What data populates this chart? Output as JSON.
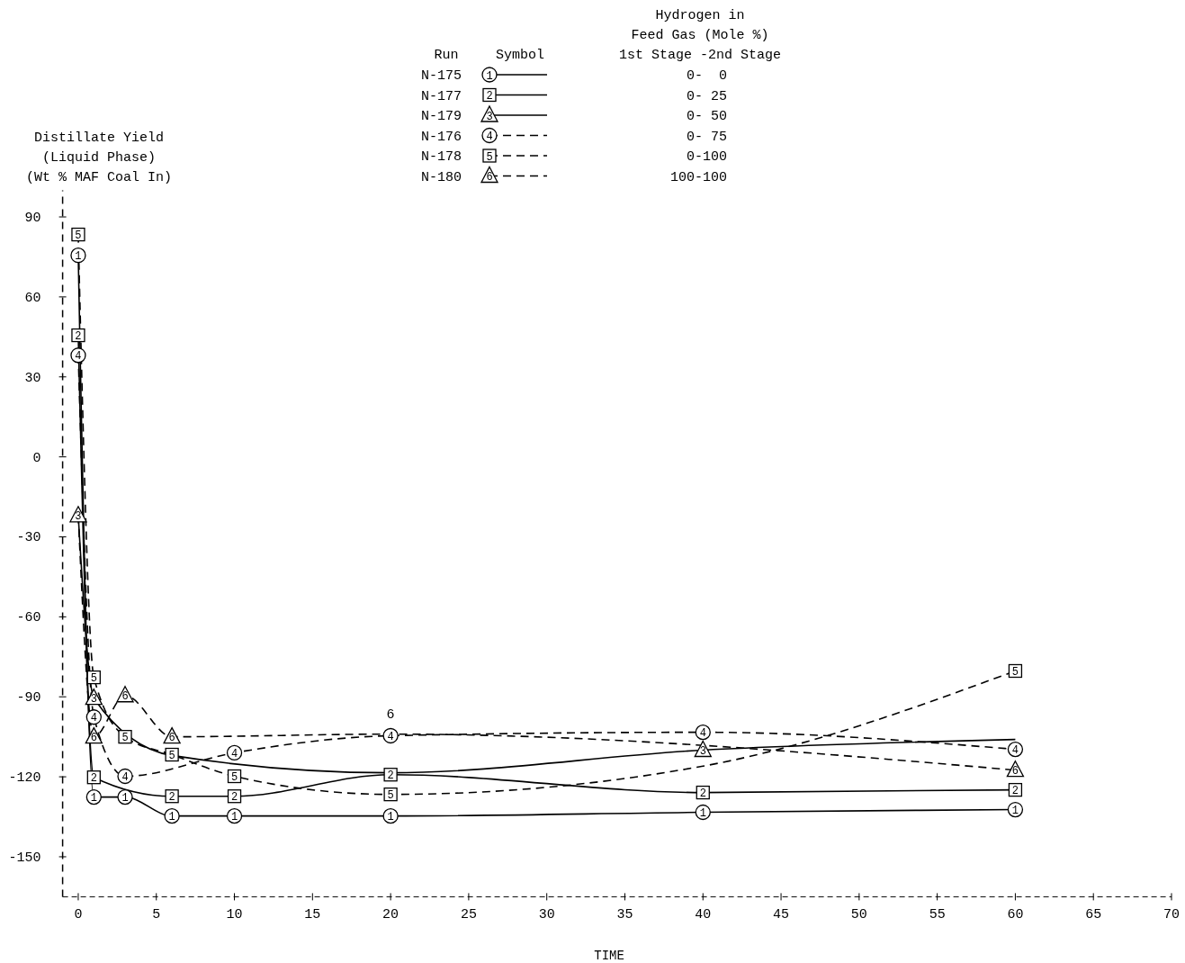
{
  "chart_data": {
    "type": "line",
    "xlabel": "TIME",
    "ylabel": "Distillate Yield\n(Liquid Phase)\n(Wt % MAF Coal In)",
    "legend_title": "Run",
    "xlim": [
      -1,
      70
    ],
    "xticks": [
      0,
      5,
      10,
      15,
      20,
      25,
      30,
      35,
      40,
      45,
      50,
      55,
      60,
      65,
      70
    ],
    "ylim": [
      -165,
      100
    ],
    "yticks": [
      90,
      60,
      30,
      0,
      -30,
      -60,
      -90,
      -120,
      -150
    ],
    "grid": false,
    "legend": "top",
    "series": [
      {
        "name": "N-175",
        "color": "#000000",
        "marker": "circle",
        "line_style": "solid",
        "x": [
          0,
          1,
          3,
          6,
          10,
          20,
          40,
          60
        ],
        "values": [
          75.6,
          -127.6,
          -127.6,
          -134.7,
          -134.7,
          -134.7,
          -133.3,
          -132.3
        ]
      },
      {
        "name": "N-177",
        "color": "#000000",
        "marker": "square",
        "line_style": "solid",
        "x": [
          0,
          1,
          6,
          10,
          20,
          40,
          60
        ],
        "values": [
          45.6,
          -120.2,
          -127.3,
          -127.3,
          -119.2,
          -125.9,
          -124.9
        ]
      },
      {
        "name": "N-179",
        "color": "#000000",
        "marker": "triangle",
        "line_style": "solid",
        "x": [
          0,
          1,
          6,
          20,
          40,
          60
        ],
        "values": [
          -22,
          -90.5,
          -112,
          -118.5,
          -110,
          -106
        ]
      },
      {
        "name": "N-176",
        "color": "#000000",
        "marker": "circle",
        "line_style": "dashed",
        "x": [
          0,
          1,
          3,
          10,
          20,
          40,
          60
        ],
        "values": [
          38.1,
          -97.6,
          -119.8,
          -111,
          -104.6,
          -103.3,
          -109.7
        ]
      },
      {
        "name": "N-178",
        "color": "#000000",
        "marker": "square",
        "line_style": "dashed",
        "x": [
          0,
          1,
          3,
          6,
          10,
          20,
          40,
          60
        ],
        "values": [
          83.4,
          -82.7,
          -105,
          -111.7,
          -119.8,
          -126.6,
          -116,
          -80.3
        ]
      },
      {
        "name": "N-180",
        "color": "#000000",
        "marker": "triangle",
        "line_style": "dashed",
        "x": [
          0,
          1,
          3,
          6,
          20,
          60
        ],
        "values": [
          -22,
          -105,
          -89.5,
          -105,
          -104,
          -117.5
        ]
      }
    ],
    "annotations": [
      {
        "text": "1",
        "x": 0,
        "y": 75.6
      },
      {
        "text": "1",
        "x": 1,
        "y": -127.6
      },
      {
        "text": "1",
        "x": 3,
        "y": -127.6
      },
      {
        "text": "1",
        "x": 6,
        "y": -134.7
      },
      {
        "text": "1",
        "x": 10,
        "y": -134.7
      },
      {
        "text": "1",
        "x": 20,
        "y": -134.7
      },
      {
        "text": "1",
        "x": 40,
        "y": -133.3
      },
      {
        "text": "1",
        "x": 60,
        "y": -132.3
      },
      {
        "text": "2",
        "x": 0,
        "y": 45.6
      },
      {
        "text": "2",
        "x": 1,
        "y": -120.2
      },
      {
        "text": "2",
        "x": 6,
        "y": -127.3
      },
      {
        "text": "2",
        "x": 10,
        "y": -127.3
      },
      {
        "text": "2",
        "x": 20,
        "y": -119.2
      },
      {
        "text": "2",
        "x": 40,
        "y": -125.9
      },
      {
        "text": "2",
        "x": 60,
        "y": -124.9
      },
      {
        "text": "3",
        "x": 0,
        "y": -22
      },
      {
        "text": "3",
        "x": 1,
        "y": -90.5
      },
      {
        "text": "3",
        "x": 40,
        "y": -110
      },
      {
        "text": "4",
        "x": 0,
        "y": 38.1
      },
      {
        "text": "4",
        "x": 1,
        "y": -97.6
      },
      {
        "text": "4",
        "x": 3,
        "y": -119.8
      },
      {
        "text": "4",
        "x": 10,
        "y": -111
      },
      {
        "text": "4",
        "x": 20,
        "y": -104.6
      },
      {
        "text": "4",
        "x": 40,
        "y": -103.3
      },
      {
        "text": "4",
        "x": 60,
        "y": -109.7
      },
      {
        "text": "5",
        "x": 0,
        "y": 83.4
      },
      {
        "text": "5",
        "x": 1,
        "y": -82.7
      },
      {
        "text": "5",
        "x": 3,
        "y": -105
      },
      {
        "text": "5",
        "x": 6,
        "y": -111.7
      },
      {
        "text": "5",
        "x": 10,
        "y": -119.8
      },
      {
        "text": "5",
        "x": 20,
        "y": -126.6
      },
      {
        "text": "5",
        "x": 60,
        "y": -80.3
      },
      {
        "text": "6",
        "x": 1,
        "y": -105
      },
      {
        "text": "6",
        "x": 3,
        "y": -89.5
      },
      {
        "text": "6",
        "x": 6,
        "y": -105
      },
      {
        "text": "6",
        "x": 20,
        "y": -104
      },
      {
        "text": "6",
        "x": 60,
        "y": -117.5
      },
      "Symbol",
      "Hydrogen in\nFeed Gas (Mole %)\n1st Stage -2nd Stage",
      "0-  0",
      "0- 25",
      "0- 50",
      "0- 75",
      "0-100",
      "100-100"
    ]
  }
}
